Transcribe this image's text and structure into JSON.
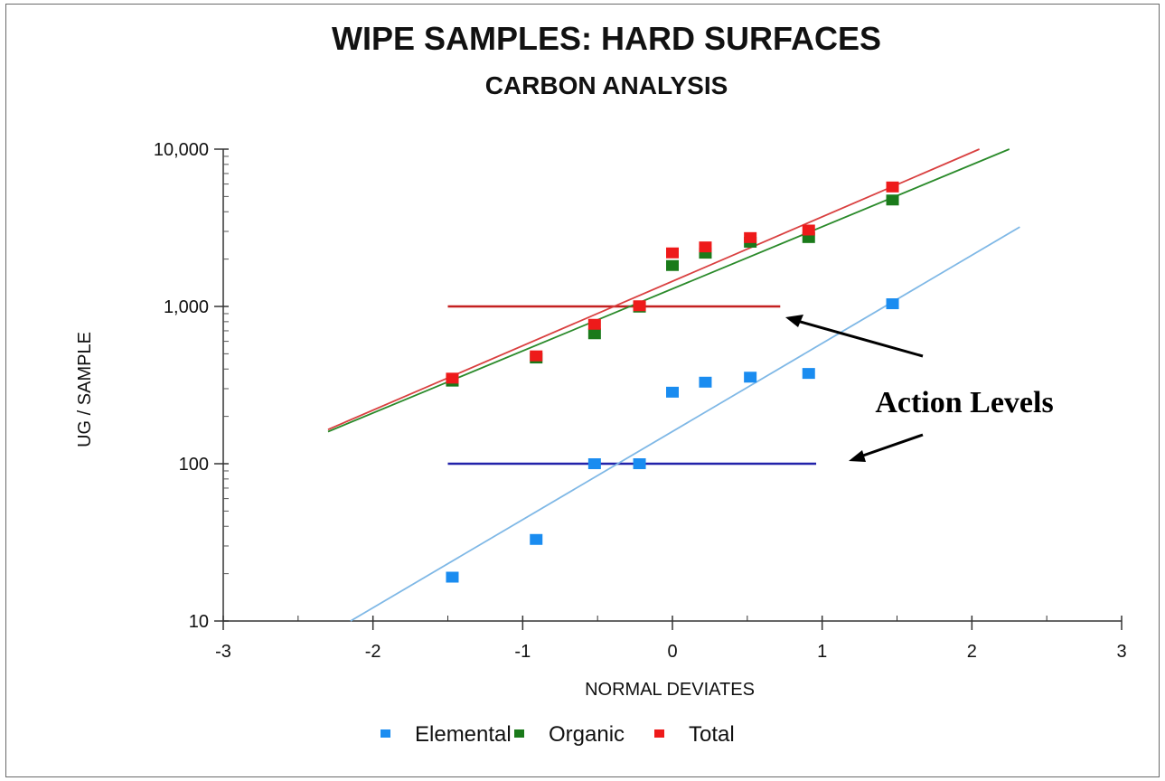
{
  "chart_data": {
    "type": "scatter",
    "title": "WIPE SAMPLES: HARD SURFACES",
    "subtitle": "CARBON ANALYSIS",
    "xlabel": "NORMAL DEVIATES",
    "ylabel": "UG / SAMPLE",
    "xlim": [
      -3,
      3
    ],
    "ylim": [
      10,
      10000
    ],
    "yscale": "log",
    "x_ticks": [
      "-3",
      "-2",
      "-1",
      "0",
      "1",
      "2",
      "3"
    ],
    "y_ticks": [
      "10",
      "100",
      "1,000",
      "10,000"
    ],
    "grid": false,
    "legend_position": "bottom",
    "series": [
      {
        "name": "Elemental",
        "color": "#1a8cf0",
        "line_color": "#7fb8e6",
        "x": [
          -1.47,
          -0.91,
          -0.52,
          -0.22,
          0.0,
          0.22,
          0.52,
          0.91,
          1.47
        ],
        "y": [
          19,
          33,
          100,
          100,
          285,
          330,
          355,
          375,
          1040
        ],
        "fit": {
          "x": [
            -2.15,
            2.32
          ],
          "y": [
            10,
            3200
          ]
        }
      },
      {
        "name": "Organic",
        "color": "#1a7a1a",
        "line_color": "#2a8a2a",
        "x": [
          -1.47,
          -0.91,
          -0.52,
          -0.22,
          0.0,
          0.22,
          0.52,
          0.91,
          1.47
        ],
        "y": [
          335,
          470,
          670,
          990,
          1820,
          2180,
          2560,
          2740,
          4750
        ],
        "fit": {
          "x": [
            -2.3,
            2.25
          ],
          "y": [
            160,
            10000
          ]
        }
      },
      {
        "name": "Total",
        "color": "#ee1a1a",
        "line_color": "#d94040",
        "x": [
          -1.47,
          -0.91,
          -0.52,
          -0.22,
          0.0,
          0.22,
          0.52,
          0.91,
          1.47
        ],
        "y": [
          350,
          485,
          770,
          1010,
          2190,
          2390,
          2740,
          3060,
          5750
        ],
        "fit": {
          "x": [
            -2.3,
            2.05
          ],
          "y": [
            165,
            10000
          ]
        }
      }
    ],
    "reference_lines": [
      {
        "y": 1000,
        "x": [
          -1.5,
          0.72
        ],
        "color": "#c42020"
      },
      {
        "y": 100,
        "x": [
          -1.5,
          0.96
        ],
        "color": "#2222aa"
      }
    ],
    "annotations": [
      {
        "text": "Action Levels"
      }
    ]
  }
}
